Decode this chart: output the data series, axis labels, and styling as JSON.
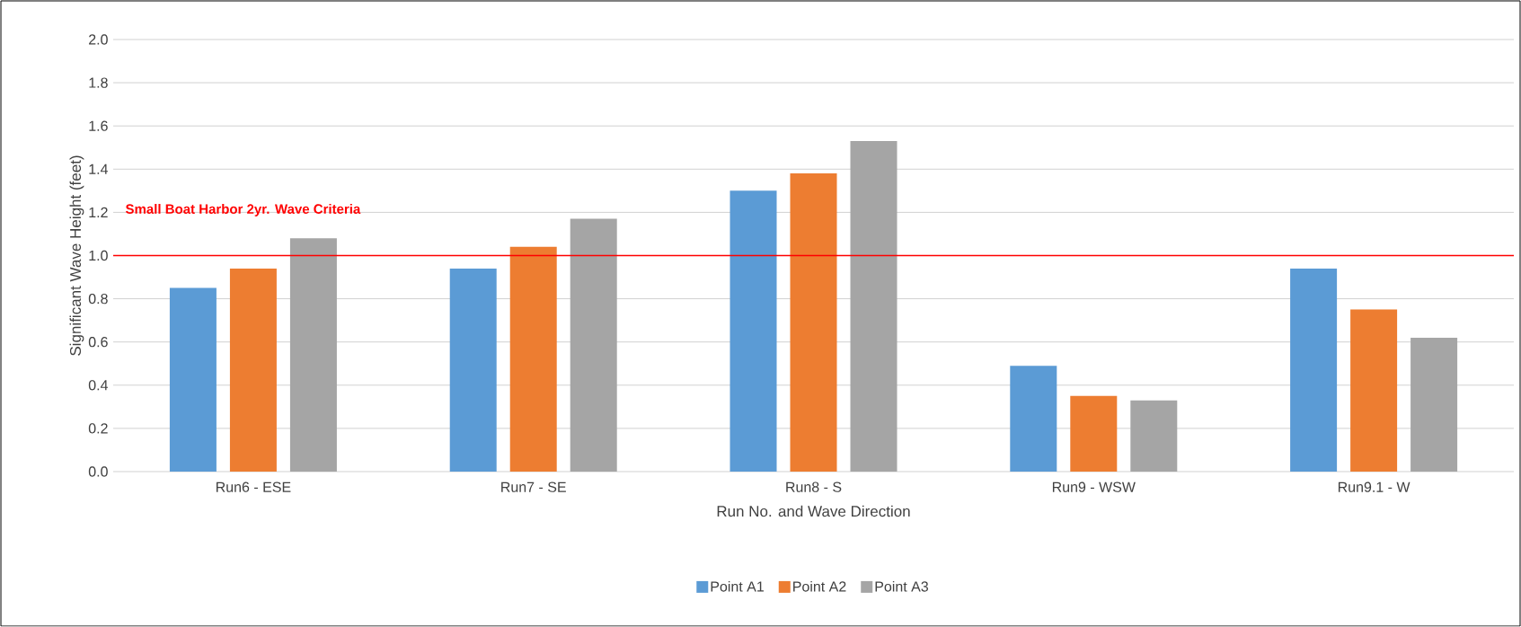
{
  "chart_data": {
    "type": "bar",
    "xlabel": "Run No. and Wave Direction",
    "ylabel": "Significant Wave Height (feet)",
    "categories": [
      "Run6 - ESE",
      "Run7 - SE",
      "Run8 - S",
      "Run9 - WSW",
      "Run9.1  - W"
    ],
    "series": [
      {
        "name": "Point A1",
        "color": "#5b9bd5",
        "values": [
          0.85,
          0.94,
          1.3,
          0.49,
          0.94
        ]
      },
      {
        "name": "Point A2",
        "color": "#ed7d31",
        "values": [
          0.94,
          1.04,
          1.38,
          0.35,
          0.75
        ]
      },
      {
        "name": "Point A3",
        "color": "#a5a5a5",
        "values": [
          1.08,
          1.17,
          1.53,
          0.33,
          0.62
        ]
      }
    ],
    "ylim": [
      0,
      2.0
    ],
    "yticks": [
      {
        "value": 0,
        "label": "0.0"
      },
      {
        "value": 0.2,
        "label": "0.2"
      },
      {
        "value": 0.4,
        "label": "0.4"
      },
      {
        "value": 0.6,
        "label": "0.6"
      },
      {
        "value": 0.8,
        "label": "0.8"
      },
      {
        "value": 1.0,
        "label": "1.0"
      },
      {
        "value": 1.2,
        "label": "1.2"
      },
      {
        "value": 1.4,
        "label": "1.4"
      },
      {
        "value": 1.6,
        "label": "1.6"
      },
      {
        "value": 1.8,
        "label": "1.8"
      },
      {
        "value": 2.0,
        "label": "2.0"
      }
    ],
    "ref_lines": [
      {
        "axis": "y",
        "value": 1.0,
        "label": "Small Boat Harbor 2yr. Wave Criteria",
        "color": "#ff0000"
      }
    ],
    "grid": "y",
    "legend": "bottom"
  }
}
